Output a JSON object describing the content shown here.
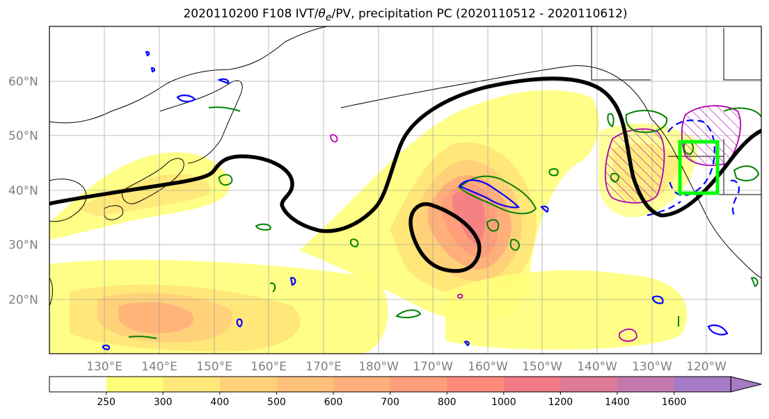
{
  "title": {
    "prefix": "2020110200 F108 IVT/",
    "theta": "θ",
    "theta_sub": "e",
    "suffix": "/PV, precipitation PC (2020110512 - 2020110612)"
  },
  "map": {
    "projection": "plate carree",
    "lon_range_east": [
      120,
      250
    ],
    "lat_range": [
      10,
      70
    ],
    "lat_labels": [
      "20°N",
      "30°N",
      "40°N",
      "50°N",
      "60°N"
    ],
    "lon_labels": [
      "130°E",
      "140°E",
      "150°E",
      "160°E",
      "170°E",
      "180°W",
      "170°W",
      "160°W",
      "150°W",
      "140°W",
      "130°W",
      "120°W"
    ],
    "gridlines": true
  },
  "colorbar": {
    "tick_labels": [
      "250",
      "300",
      "400",
      "500",
      "600",
      "700",
      "800",
      "1000",
      "1200",
      "1400",
      "1600"
    ],
    "colors": [
      "#ffffff",
      "#ffff7a",
      "#ffe77a",
      "#ffd27a",
      "#ffc07a",
      "#ffb07a",
      "#ff9e7a",
      "#ff8a7a",
      "#f27a84",
      "#dd7a96",
      "#c27aae",
      "#a67ac6"
    ],
    "extend": "max"
  },
  "legend_colors": {
    "contour_black": "#000000",
    "pv_green": "#008000",
    "theta_blue": "#0000ff",
    "precip_magenta": "#b000b0",
    "box_lime": "#00ff00"
  }
}
